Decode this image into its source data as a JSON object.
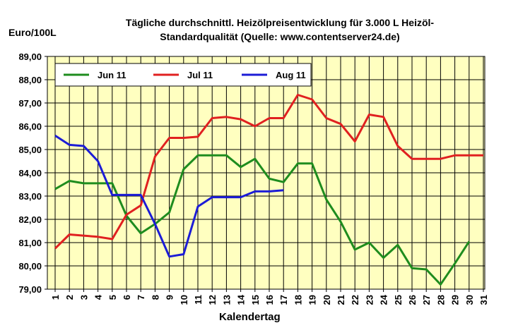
{
  "chart_data": {
    "type": "line",
    "title_line1": "Tägliche durchschnittl. Heizölpreisentwicklung für 3.000 L Heizöl-",
    "title_line2": "Standardqualität (Quelle: www.contentserver24.de)",
    "ylabel": "Euro/100L",
    "xlabel": "Kalendertag",
    "ylim": [
      79,
      89
    ],
    "xlim": [
      1,
      31
    ],
    "yticks": [
      "79,00",
      "80,00",
      "81,00",
      "82,00",
      "83,00",
      "84,00",
      "85,00",
      "86,00",
      "87,00",
      "88,00",
      "89,00"
    ],
    "xticks": [
      "1",
      "2",
      "3",
      "4",
      "5",
      "6",
      "7",
      "8",
      "9",
      "10",
      "11",
      "12",
      "13",
      "14",
      "15",
      "16",
      "17",
      "18",
      "19",
      "20",
      "21",
      "22",
      "23",
      "24",
      "25",
      "26",
      "27",
      "28",
      "29",
      "30",
      "31"
    ],
    "grid": true,
    "legend_position": "top-left",
    "background_color": "#ffffc0",
    "series": [
      {
        "name": "Jun 11",
        "color": "#1e8c1e",
        "x": [
          1,
          2,
          3,
          4,
          5,
          6,
          7,
          8,
          9,
          10,
          11,
          12,
          13,
          14,
          15,
          16,
          17,
          18,
          19,
          20,
          21,
          22,
          23,
          24,
          25,
          26,
          27,
          28,
          29,
          30
        ],
        "values": [
          83.3,
          83.65,
          83.55,
          83.55,
          83.55,
          82.15,
          81.4,
          81.8,
          82.3,
          84.15,
          84.75,
          84.75,
          84.75,
          84.25,
          84.6,
          83.75,
          83.6,
          84.4,
          84.4,
          82.85,
          81.9,
          80.7,
          81.0,
          80.35,
          80.9,
          79.9,
          79.85,
          79.2,
          80.1,
          81.05
        ]
      },
      {
        "name": "Jul 11",
        "color": "#e02020",
        "x": [
          1,
          2,
          3,
          4,
          5,
          6,
          7,
          8,
          9,
          10,
          11,
          12,
          13,
          14,
          15,
          16,
          17,
          18,
          19,
          20,
          21,
          22,
          23,
          24,
          25,
          26,
          27,
          28,
          29,
          30,
          31
        ],
        "values": [
          80.75,
          81.35,
          81.3,
          81.25,
          81.15,
          82.2,
          82.6,
          84.7,
          85.5,
          85.5,
          85.55,
          86.35,
          86.4,
          86.3,
          86.0,
          86.35,
          86.35,
          87.35,
          87.15,
          86.35,
          86.1,
          85.35,
          86.5,
          86.4,
          85.15,
          84.6,
          84.6,
          84.6,
          84.75,
          84.75,
          84.75
        ]
      },
      {
        "name": "Aug 11",
        "color": "#1c1cd6",
        "x": [
          1,
          2,
          3,
          4,
          5,
          6,
          7,
          8,
          9,
          10,
          11,
          12,
          13,
          14,
          15,
          16,
          17
        ],
        "values": [
          85.6,
          85.2,
          85.15,
          84.5,
          83.05,
          83.05,
          83.05,
          81.8,
          80.4,
          80.5,
          82.55,
          82.95,
          82.95,
          82.95,
          83.2,
          83.2,
          83.25
        ]
      }
    ]
  }
}
